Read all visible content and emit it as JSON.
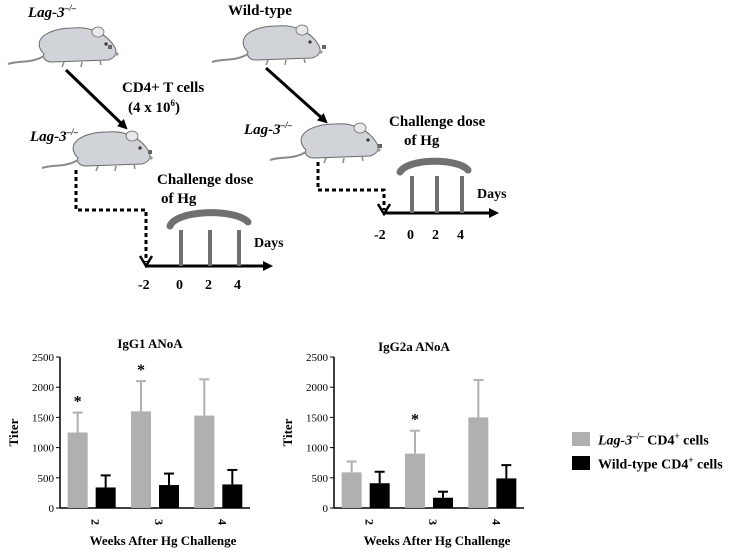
{
  "schematic": {
    "left": {
      "donor_label": "Lag-3",
      "donor_superscript": "–/–",
      "transfer_line1": "CD4+ T cells",
      "transfer_line2_prefix": "(4 x 10",
      "transfer_line2_exp": "6",
      "transfer_line2_suffix": ")",
      "recipient_label": "Lag-3",
      "recipient_superscript": "–/–",
      "challenge_line1": "Challenge dose",
      "challenge_line2": "of Hg",
      "days_label": "Days",
      "ticks": [
        "-2",
        "0",
        "2",
        "4"
      ]
    },
    "right": {
      "donor_label": "Wild-type",
      "recipient_label": "Lag-3",
      "recipient_superscript": "–/–",
      "challenge_line1": "Challenge dose",
      "challenge_line2": "of Hg",
      "days_label": "Days",
      "ticks": [
        "-2",
        "0",
        "2",
        "4"
      ]
    }
  },
  "legend": {
    "lag3_prefix": "Lag-3",
    "lag3_sup": "–/–",
    "lag3_rest": " CD4",
    "lag3_sup2": "+",
    "lag3_tail": " cells",
    "wt_text": "Wild-type CD4",
    "wt_sup": "+",
    "wt_tail": " cells"
  },
  "colors": {
    "lag3_bar": "#b0b0b0",
    "wt_bar": "#000000",
    "challenge_bracket": "#808080",
    "mouse_body": "#d0d4d8"
  },
  "chart_data": [
    {
      "type": "bar",
      "title": "IgG1 ANoA",
      "xlabel": "Weeks After Hg Challenge",
      "ylabel": "Titer",
      "ylim": [
        0,
        2500
      ],
      "yticks": [
        "0",
        "500",
        "1000",
        "1500",
        "2000",
        "2500"
      ],
      "categories": [
        "2",
        "3",
        "4"
      ],
      "series": [
        {
          "name": "Lag-3 –/– CD4+ cells",
          "values": [
            1250,
            1600,
            1530
          ],
          "errors": [
            330,
            500,
            600
          ]
        },
        {
          "name": "Wild-type CD4+ cells",
          "values": [
            340,
            380,
            390
          ],
          "errors": [
            200,
            190,
            240
          ]
        }
      ],
      "annotations": [
        {
          "text": "*",
          "category": "2",
          "series": 0
        },
        {
          "text": "*",
          "category": "3",
          "series": 0
        }
      ]
    },
    {
      "type": "bar",
      "title": "IgG2a ANoA",
      "xlabel": "Weeks After Hg Challenge",
      "ylabel": "Titer",
      "ylim": [
        0,
        2500
      ],
      "yticks": [
        "0",
        "500",
        "1000",
        "1500",
        "2000",
        "2500"
      ],
      "categories": [
        "2",
        "3",
        "4"
      ],
      "series": [
        {
          "name": "Lag-3 –/– CD4+ cells",
          "values": [
            590,
            900,
            1500
          ],
          "errors": [
            180,
            380,
            620
          ]
        },
        {
          "name": "Wild-type CD4+ cells",
          "values": [
            410,
            170,
            490
          ],
          "errors": [
            190,
            100,
            220
          ]
        }
      ],
      "annotations": [
        {
          "text": "*",
          "category": "3",
          "series": 0
        }
      ]
    }
  ]
}
